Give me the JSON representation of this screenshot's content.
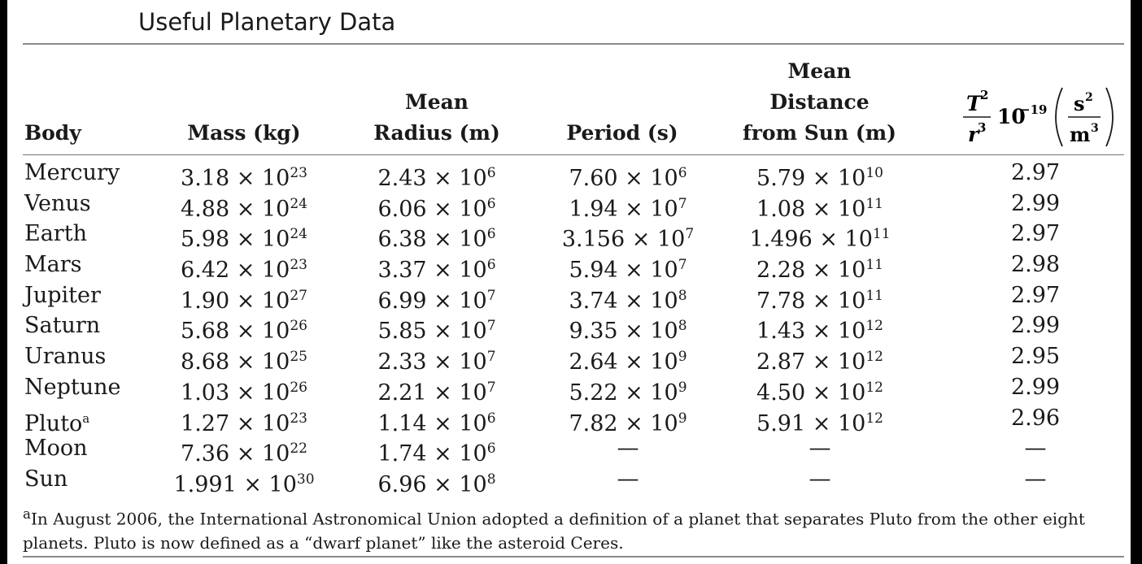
{
  "title": "Useful Planetary Data",
  "headers": {
    "body": "Body",
    "mass": "Mass (kg)",
    "radius": [
      "Mean",
      "Radius (m)"
    ],
    "period": "Period (s)",
    "distance": [
      "Mean",
      "Distance",
      "from Sun (m)"
    ],
    "ratio": {
      "num": "T",
      "num_exp": "2",
      "den": "r",
      "den_exp": "3",
      "factor": "10",
      "factor_exp": "−19",
      "unit_num": "s",
      "unit_num_exp": "2",
      "unit_den": "m",
      "unit_den_exp": "3"
    }
  },
  "rows": [
    {
      "body": "Mercury",
      "mass": [
        "3.18",
        "23"
      ],
      "radius": [
        "2.43",
        "6"
      ],
      "period": [
        "7.60",
        "6"
      ],
      "distance": [
        "5.79",
        "10"
      ],
      "ratio": "2.97"
    },
    {
      "body": "Venus",
      "mass": [
        "4.88",
        "24"
      ],
      "radius": [
        "6.06",
        "6"
      ],
      "period": [
        "1.94",
        "7"
      ],
      "distance": [
        "1.08",
        "11"
      ],
      "ratio": "2.99"
    },
    {
      "body": "Earth",
      "mass": [
        "5.98",
        "24"
      ],
      "radius": [
        "6.38",
        "6"
      ],
      "period": [
        "3.156",
        "7"
      ],
      "distance": [
        "1.496",
        "11"
      ],
      "ratio": "2.97"
    },
    {
      "body": "Mars",
      "mass": [
        "6.42",
        "23"
      ],
      "radius": [
        "3.37",
        "6"
      ],
      "period": [
        "5.94",
        "7"
      ],
      "distance": [
        "2.28",
        "11"
      ],
      "ratio": "2.98"
    },
    {
      "body": "Jupiter",
      "mass": [
        "1.90",
        "27"
      ],
      "radius": [
        "6.99",
        "7"
      ],
      "period": [
        "3.74",
        "8"
      ],
      "distance": [
        "7.78",
        "11"
      ],
      "ratio": "2.97"
    },
    {
      "body": "Saturn",
      "mass": [
        "5.68",
        "26"
      ],
      "radius": [
        "5.85",
        "7"
      ],
      "period": [
        "9.35",
        "8"
      ],
      "distance": [
        "1.43",
        "12"
      ],
      "ratio": "2.99"
    },
    {
      "body": "Uranus",
      "mass": [
        "8.68",
        "25"
      ],
      "radius": [
        "2.33",
        "7"
      ],
      "period": [
        "2.64",
        "9"
      ],
      "distance": [
        "2.87",
        "12"
      ],
      "ratio": "2.95"
    },
    {
      "body": "Neptune",
      "mass": [
        "1.03",
        "26"
      ],
      "radius": [
        "2.21",
        "7"
      ],
      "period": [
        "5.22",
        "9"
      ],
      "distance": [
        "4.50",
        "12"
      ],
      "ratio": "2.99"
    },
    {
      "body": "Pluto",
      "body_mark": "a",
      "mass": [
        "1.27",
        "23"
      ],
      "radius": [
        "1.14",
        "6"
      ],
      "period": [
        "7.82",
        "9"
      ],
      "distance": [
        "5.91",
        "12"
      ],
      "ratio": "2.96"
    },
    {
      "body": "Moon",
      "mass": [
        "7.36",
        "22"
      ],
      "radius": [
        "1.74",
        "6"
      ],
      "period": "—",
      "distance": "—",
      "ratio": "—"
    },
    {
      "body": "Sun",
      "mass": [
        "1.991",
        "30"
      ],
      "radius": [
        "6.96",
        "8"
      ],
      "period": "—",
      "distance": "—",
      "ratio": "—"
    }
  ],
  "footnote": {
    "mark": "a",
    "text": "In August 2006, the International Astronomical Union adopted a definition of a planet that separates Pluto from the other eight planets. Pluto is now defined as a “dwarf planet” like the asteroid Ceres."
  }
}
